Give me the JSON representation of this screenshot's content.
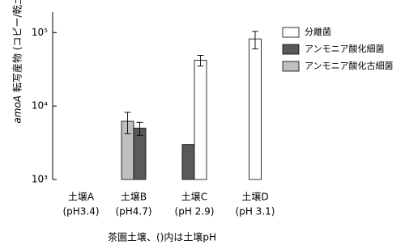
{
  "chart_data": {
    "type": "bar",
    "log_scale": true,
    "y_label_gene": "amoA",
    "y_label": "転写産物 (コピー/乾土)",
    "x_label": "茶園土壌、()内は土壌pH",
    "categories": [
      "土壌A",
      "土壌B",
      "土壌C",
      "土壌D"
    ],
    "category_ph": [
      "(pH3.4)",
      "(pH4.7)",
      "(pH 2.9)",
      "(pH 3.1)"
    ],
    "series": [
      {
        "name": "分離菌",
        "color": "#ffffff",
        "values": [
          null,
          null,
          42000,
          82000
        ],
        "errors": [
          null,
          null,
          7000,
          22000
        ]
      },
      {
        "name": "アンモニア酸化細菌",
        "color": "#595959",
        "values": [
          null,
          5000,
          3000,
          null
        ],
        "errors": [
          null,
          1000,
          null,
          null
        ]
      },
      {
        "name": "アンモニア酸化古細菌",
        "color": "#bfbfbf",
        "values": [
          null,
          6200,
          null,
          null
        ],
        "errors": [
          null,
          2000,
          null,
          null
        ]
      }
    ],
    "ylim": [
      1000,
      190000
    ],
    "yticks": [
      {
        "value": 1000,
        "label": "10³"
      },
      {
        "value": 10000,
        "label": "10⁴"
      },
      {
        "value": 100000,
        "label": "10⁵"
      }
    ]
  }
}
